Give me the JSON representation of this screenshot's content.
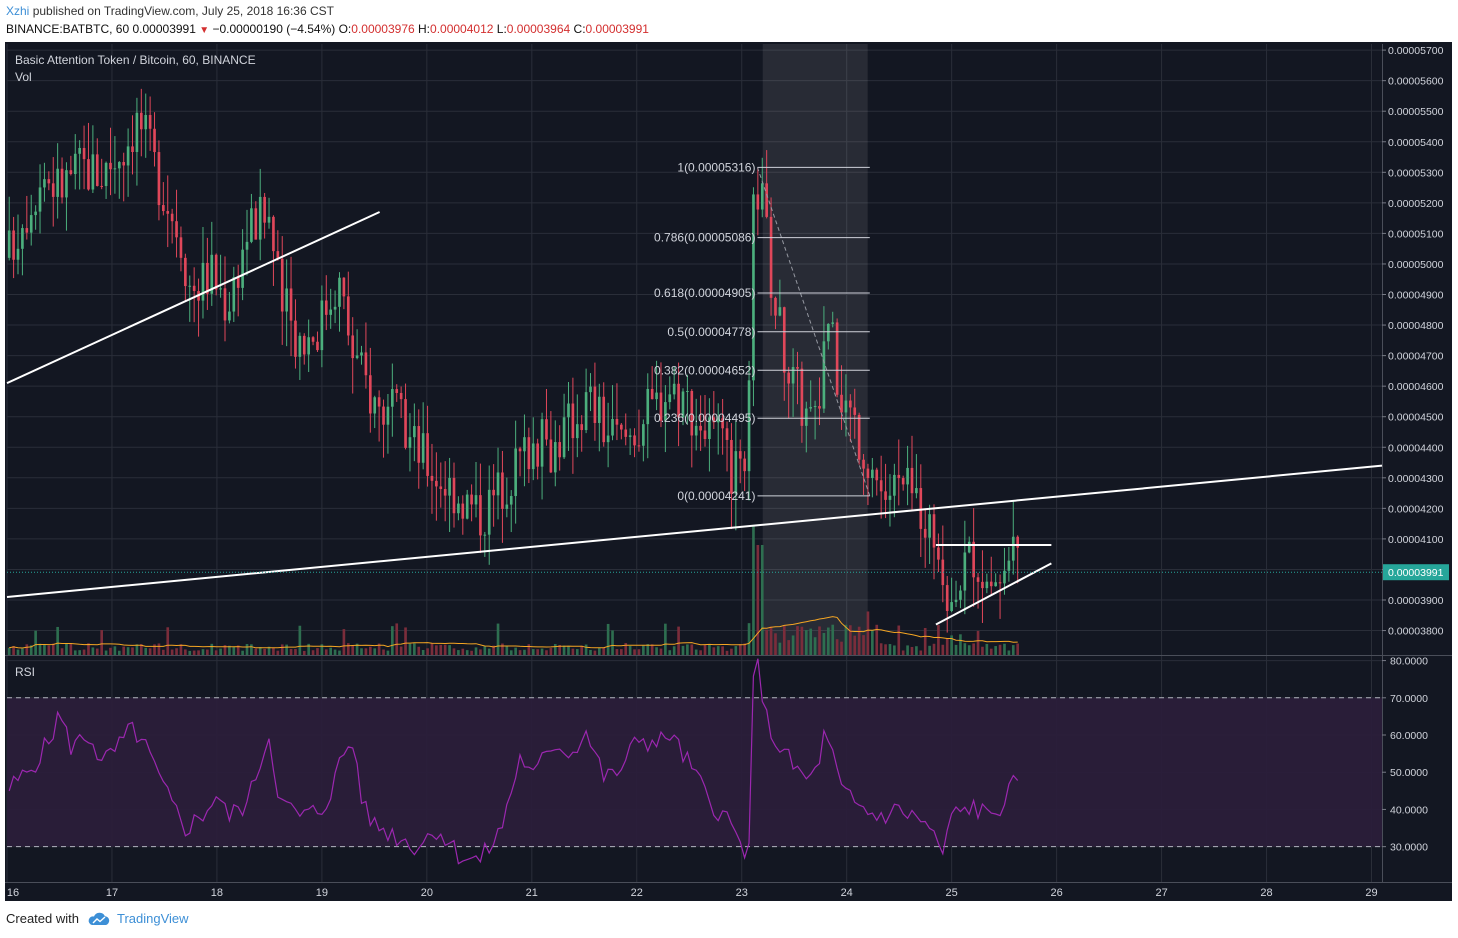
{
  "header": {
    "user": "Xzhi",
    "published": "published on TradingView.com, July 25, 2018 16:36 CST",
    "symbol": "BINANCE:BATBTC, 60",
    "last": "0.00003991",
    "arrow": "▼",
    "change": "−0.00000190 (−4.54%)",
    "o_label": "O:",
    "o_value": "0.00003976",
    "h_label": "H:",
    "h_value": "0.00004012",
    "l_label": "L:",
    "l_value": "0.00003964",
    "c_label": "C:",
    "c_value": "0.00003991"
  },
  "main_pane": {
    "title": "Basic Attention Token / Bitcoin, 60, BINANCE",
    "vol_label": "Vol"
  },
  "rsi_pane": {
    "title": "RSI"
  },
  "footer": {
    "created_with": "Created with",
    "brand": "TradingView",
    "logo_icon": "tradingview-cloud-icon"
  },
  "colors": {
    "background": "#131722",
    "grid": "#2a2e39",
    "bull": "#4caf7d",
    "bear": "#e0475a",
    "volume_bull": "#2e6e50",
    "volume_bear": "#7b2d3b",
    "volume_ma": "#f5a623",
    "rsi_line": "#9c27b0",
    "rsi_band": "#2a1d3a",
    "last_price_label": "#26a69a",
    "accent": "#3d8fd6"
  },
  "chart_data": [
    {
      "type": "candlestick",
      "title": "Basic Attention Token / Bitcoin, 60, BINANCE",
      "x_ticks": [
        "16",
        "17",
        "18",
        "19",
        "20",
        "21",
        "22",
        "23",
        "24",
        "25",
        "26",
        "27",
        "28",
        "29"
      ],
      "y_ticks": [
        "0.00003800",
        "0.00003900",
        "0.00004000",
        "0.00004100",
        "0.00004200",
        "0.00004300",
        "0.00004400",
        "0.00004500",
        "0.00004600",
        "0.00004700",
        "0.00004800",
        "0.00004900",
        "0.00005000",
        "0.00005100",
        "0.00005200",
        "0.00005300",
        "0.00005400",
        "0.00005500",
        "0.00005600",
        "0.00005700"
      ],
      "ylim": [
        3.72e-05,
        5.72e-05
      ],
      "xlim": [
        16.0,
        29.1
      ],
      "last_price": "0.00003991",
      "close_path": [
        [
          16.0,
          5.02e-05
        ],
        [
          16.15,
          5.16e-05
        ],
        [
          16.35,
          5.3e-05
        ],
        [
          16.5,
          5.25e-05
        ],
        [
          16.7,
          5.32e-05
        ],
        [
          16.9,
          5.3e-05
        ],
        [
          17.1,
          5.38e-05
        ],
        [
          17.25,
          5.48e-05
        ],
        [
          17.45,
          5.28e-05
        ],
        [
          17.65,
          5.1e-05
        ],
        [
          17.75,
          4.92e-05
        ],
        [
          17.95,
          4.97e-05
        ],
        [
          18.1,
          4.87e-05
        ],
        [
          18.3,
          5.12e-05
        ],
        [
          18.5,
          5.16e-05
        ],
        [
          18.6,
          4.88e-05
        ],
        [
          18.8,
          4.75e-05
        ],
        [
          18.95,
          4.79e-05
        ],
        [
          19.15,
          4.96e-05
        ],
        [
          19.3,
          4.7e-05
        ],
        [
          19.5,
          4.55e-05
        ],
        [
          19.7,
          4.5e-05
        ],
        [
          19.9,
          4.4e-05
        ],
        [
          20.1,
          4.31e-05
        ],
        [
          20.3,
          4.25e-05
        ],
        [
          20.5,
          4.18e-05
        ],
        [
          20.6,
          4.22e-05
        ],
        [
          20.8,
          4.32e-05
        ],
        [
          21.0,
          4.42e-05
        ],
        [
          21.2,
          4.4e-05
        ],
        [
          21.4,
          4.5e-05
        ],
        [
          21.55,
          4.56e-05
        ],
        [
          21.7,
          4.46e-05
        ],
        [
          21.85,
          4.42e-05
        ],
        [
          22.0,
          4.47e-05
        ],
        [
          22.15,
          4.53e-05
        ],
        [
          22.3,
          4.6e-05
        ],
        [
          22.45,
          4.57e-05
        ],
        [
          22.6,
          4.48e-05
        ],
        [
          22.75,
          4.43e-05
        ],
        [
          22.9,
          4.32e-05
        ],
        [
          23.05,
          4.26e-05
        ],
        [
          23.12,
          5.28e-05
        ],
        [
          23.2,
          5.2e-05
        ],
        [
          23.3,
          4.9e-05
        ],
        [
          23.45,
          4.65e-05
        ],
        [
          23.6,
          4.52e-05
        ],
        [
          23.72,
          4.46e-05
        ],
        [
          23.8,
          4.84e-05
        ],
        [
          23.95,
          4.58e-05
        ],
        [
          24.1,
          4.46e-05
        ],
        [
          24.22,
          4.36e-05
        ],
        [
          24.35,
          4.25e-05
        ],
        [
          24.5,
          4.27e-05
        ],
        [
          24.65,
          4.24e-05
        ],
        [
          24.75,
          4.19e-05
        ],
        [
          24.85,
          4.04e-05
        ],
        [
          24.92,
          3.85e-05
        ],
        [
          25.05,
          3.98e-05
        ],
        [
          25.2,
          4.06e-05
        ],
        [
          25.35,
          3.96e-05
        ],
        [
          25.5,
          3.98e-05
        ],
        [
          25.62,
          4.04e-05
        ],
        [
          25.65,
          3.99e-05
        ]
      ],
      "candle_count": 230,
      "volume": {
        "label": "Vol",
        "spike_day": 23.15
      },
      "fibonacci": {
        "x_start": 23.15,
        "x_end": 24.22,
        "levels": [
          {
            "ratio": "1",
            "price": 5.316e-05,
            "label": "1(0.00005316)"
          },
          {
            "ratio": "0.786",
            "price": 5.086e-05,
            "label": "0.786(0.00005086)"
          },
          {
            "ratio": "0.618",
            "price": 4.905e-05,
            "label": "0.618(0.00004905)"
          },
          {
            "ratio": "0.5",
            "price": 4.778e-05,
            "label": "0.5(0.00004778)"
          },
          {
            "ratio": "0.382",
            "price": 4.652e-05,
            "label": "0.382(0.00004652)"
          },
          {
            "ratio": "0.236",
            "price": 4.495e-05,
            "label": "0.236(0.00004495)"
          },
          {
            "ratio": "0",
            "price": 4.241e-05,
            "label": "0(0.00004241)"
          }
        ]
      },
      "shaded_range": [
        23.2,
        24.2
      ],
      "trendlines": [
        {
          "from": [
            16.0,
            4.61e-05
          ],
          "to": [
            19.55,
            5.17e-05
          ]
        },
        {
          "from": [
            16.0,
            3.91e-05
          ],
          "to": [
            29.1,
            4.34e-05
          ]
        },
        {
          "from": [
            24.85,
            4.08e-05
          ],
          "to": [
            25.95,
            4.08e-05
          ]
        },
        {
          "from": [
            24.85,
            3.82e-05
          ],
          "to": [
            25.95,
            4.02e-05
          ]
        }
      ]
    },
    {
      "type": "line",
      "title": "RSI",
      "y_ticks": [
        "30.0000",
        "40.0000",
        "50.0000",
        "60.0000",
        "70.0000",
        "80.0000"
      ],
      "ylim": [
        20.5,
        81.5
      ],
      "bands": [
        30,
        70
      ],
      "series": [
        {
          "values_path": [
            [
              16.0,
              45
            ],
            [
              16.2,
              50
            ],
            [
              16.4,
              58
            ],
            [
              16.5,
              66
            ],
            [
              16.6,
              57
            ],
            [
              16.8,
              60
            ],
            [
              16.9,
              52
            ],
            [
              17.1,
              58
            ],
            [
              17.2,
              62
            ],
            [
              17.35,
              55
            ],
            [
              17.5,
              45
            ],
            [
              17.6,
              40
            ],
            [
              17.7,
              35
            ],
            [
              17.85,
              38
            ],
            [
              18.0,
              44
            ],
            [
              18.1,
              38
            ],
            [
              18.3,
              42
            ],
            [
              18.4,
              52
            ],
            [
              18.5,
              60
            ],
            [
              18.6,
              42
            ],
            [
              18.8,
              38
            ],
            [
              19.0,
              40
            ],
            [
              19.1,
              46
            ],
            [
              19.2,
              55
            ],
            [
              19.3,
              58
            ],
            [
              19.4,
              40
            ],
            [
              19.5,
              36
            ],
            [
              19.7,
              33
            ],
            [
              19.9,
              30
            ],
            [
              20.1,
              35
            ],
            [
              20.3,
              28
            ],
            [
              20.5,
              26
            ],
            [
              20.7,
              34
            ],
            [
              20.9,
              55
            ],
            [
              21.0,
              48
            ],
            [
              21.2,
              58
            ],
            [
              21.4,
              55
            ],
            [
              21.5,
              62
            ],
            [
              21.7,
              48
            ],
            [
              21.9,
              52
            ],
            [
              22.0,
              60
            ],
            [
              22.2,
              57
            ],
            [
              22.3,
              61
            ],
            [
              22.5,
              52
            ],
            [
              22.7,
              42
            ],
            [
              22.85,
              38
            ],
            [
              23.0,
              30
            ],
            [
              23.07,
              28
            ],
            [
              23.1,
              72
            ],
            [
              23.15,
              80
            ],
            [
              23.25,
              62
            ],
            [
              23.4,
              55
            ],
            [
              23.6,
              48
            ],
            [
              23.72,
              50
            ],
            [
              23.77,
              60
            ],
            [
              23.85,
              56
            ],
            [
              23.95,
              45
            ],
            [
              24.1,
              41
            ],
            [
              24.3,
              38
            ],
            [
              24.5,
              40
            ],
            [
              24.65,
              38
            ],
            [
              24.8,
              35
            ],
            [
              24.9,
              27
            ],
            [
              25.0,
              38
            ],
            [
              25.2,
              41
            ],
            [
              25.35,
              38
            ],
            [
              25.5,
              42
            ],
            [
              25.6,
              47
            ],
            [
              25.65,
              44
            ]
          ]
        }
      ]
    }
  ]
}
